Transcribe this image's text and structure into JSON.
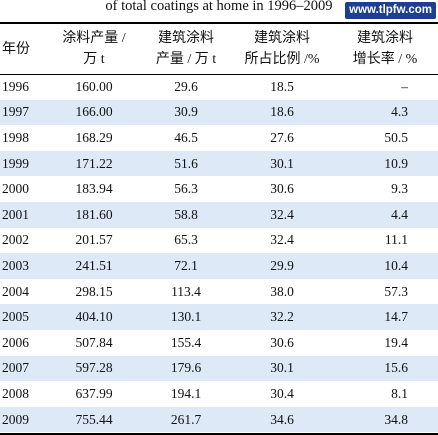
{
  "caption": "of total coatings at home in 1996–2009",
  "watermark": "www.tlpfw.com",
  "headers": {
    "year": "年份",
    "coatings": [
      "涂料产量 /",
      "万 t"
    ],
    "arch": [
      "建筑涂料",
      "产量 / 万 t"
    ],
    "ratio": [
      "建筑涂料",
      "所占比例 /%"
    ],
    "growth": [
      "建筑涂料",
      "增长率 / %"
    ]
  },
  "rows": [
    {
      "year": "1996",
      "coatings": "160.00",
      "arch": "29.6",
      "ratio": "18.5",
      "growth": "–"
    },
    {
      "year": "1997",
      "coatings": "166.00",
      "arch": "30.9",
      "ratio": "18.6",
      "growth": "4.3"
    },
    {
      "year": "1998",
      "coatings": "168.29",
      "arch": "46.5",
      "ratio": "27.6",
      "growth": "50.5"
    },
    {
      "year": "1999",
      "coatings": "171.22",
      "arch": "51.6",
      "ratio": "30.1",
      "growth": "10.9"
    },
    {
      "year": "2000",
      "coatings": "183.94",
      "arch": "56.3",
      "ratio": "30.6",
      "growth": "9.3"
    },
    {
      "year": "2001",
      "coatings": "181.60",
      "arch": "58.8",
      "ratio": "32.4",
      "growth": "4.4"
    },
    {
      "year": "2002",
      "coatings": "201.57",
      "arch": "65.3",
      "ratio": "32.4",
      "growth": "11.1"
    },
    {
      "year": "2003",
      "coatings": "241.51",
      "arch": "72.1",
      "ratio": "29.9",
      "growth": "10.4"
    },
    {
      "year": "2004",
      "coatings": "298.15",
      "arch": "113.4",
      "ratio": "38.0",
      "growth": "57.3"
    },
    {
      "year": "2005",
      "coatings": "404.10",
      "arch": "130.1",
      "ratio": "32.2",
      "growth": "14.7"
    },
    {
      "year": "2006",
      "coatings": "507.84",
      "arch": "155.4",
      "ratio": "30.6",
      "growth": "19.4"
    },
    {
      "year": "2007",
      "coatings": "597.28",
      "arch": "179.6",
      "ratio": "30.1",
      "growth": "15.6"
    },
    {
      "year": "2008",
      "coatings": "637.99",
      "arch": "194.1",
      "ratio": "30.4",
      "growth": "8.1"
    },
    {
      "year": "2009",
      "coatings": "755.44",
      "arch": "261.7",
      "ratio": "34.6",
      "growth": "34.8"
    }
  ],
  "colors": {
    "row_shade": "#dde9f6",
    "watermark_bg": "#1c3f8f",
    "text": "#111111"
  }
}
